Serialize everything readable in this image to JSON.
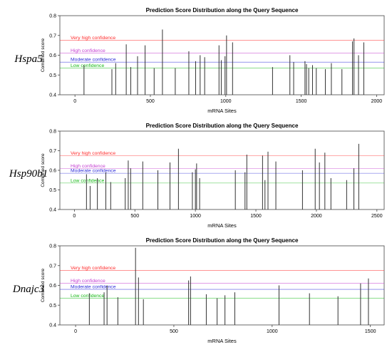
{
  "colors": {
    "very_high": "#ff2a2a",
    "high": "#c43cd0",
    "moderate": "#2a2ad8",
    "low": "#14b814",
    "bar": "#333333",
    "axis": "#444444"
  },
  "chart_data": [
    {
      "type": "bar",
      "gene": "Hspa5",
      "title": "Prediction Score Distribution along the Query Sequence",
      "xlabel": "mRNA Sites",
      "ylabel": "Combined score",
      "xlim": [
        -100,
        2050
      ],
      "ylim": [
        0.4,
        0.8
      ],
      "xticks": [
        0,
        500,
        1000,
        1500,
        2000
      ],
      "yticks": [
        0.4,
        0.5,
        0.6,
        0.7,
        0.8
      ],
      "thresholds": [
        {
          "label": "Very high confidence",
          "value": 0.675,
          "color_key": "very_high"
        },
        {
          "label": "High confidence",
          "value": 0.61,
          "color_key": "high"
        },
        {
          "label": "Moderate confidence",
          "value": 0.565,
          "color_key": "moderate"
        },
        {
          "label": "Low confidence",
          "value": 0.535,
          "color_key": "low"
        }
      ],
      "x": [
        60,
        245,
        270,
        340,
        370,
        415,
        465,
        525,
        580,
        665,
        755,
        800,
        830,
        860,
        955,
        970,
        995,
        1005,
        1045,
        1310,
        1425,
        1450,
        1525,
        1535,
        1550,
        1575,
        1600,
        1660,
        1700,
        1770,
        1840,
        1850,
        1880,
        1915
      ],
      "values": [
        0.55,
        0.53,
        0.56,
        0.655,
        0.54,
        0.595,
        0.65,
        0.535,
        0.73,
        0.535,
        0.62,
        0.57,
        0.6,
        0.59,
        0.65,
        0.575,
        0.595,
        0.7,
        0.665,
        0.54,
        0.6,
        0.565,
        0.57,
        0.555,
        0.535,
        0.55,
        0.535,
        0.53,
        0.56,
        0.53,
        0.67,
        0.685,
        0.6,
        0.665
      ]
    },
    {
      "type": "bar",
      "gene": "Hsp90b1",
      "title": "Prediction Score Distribution along the Query Sequence",
      "xlabel": "mRNA Sites",
      "ylabel": "Combined score",
      "xlim": [
        -120,
        2560
      ],
      "ylim": [
        0.4,
        0.8
      ],
      "xticks": [
        0,
        500,
        1000,
        1500,
        2000,
        2500
      ],
      "yticks": [
        0.4,
        0.5,
        0.6,
        0.7,
        0.8
      ],
      "thresholds": [
        {
          "label": "Very high confidence",
          "value": 0.675,
          "color_key": "very_high"
        },
        {
          "label": "High confidence",
          "value": 0.61,
          "color_key": "high"
        },
        {
          "label": "Moderate confidence",
          "value": 0.585,
          "color_key": "moderate"
        },
        {
          "label": "Low confidence",
          "value": 0.535,
          "color_key": "low"
        }
      ],
      "x": [
        100,
        130,
        190,
        260,
        300,
        420,
        445,
        465,
        565,
        690,
        790,
        860,
        975,
        1000,
        1010,
        1035,
        1330,
        1410,
        1425,
        1555,
        1575,
        1600,
        1665,
        1885,
        1990,
        2025,
        2070,
        2120,
        2250,
        2310,
        2350
      ],
      "values": [
        0.58,
        0.52,
        0.56,
        0.59,
        0.54,
        0.56,
        0.65,
        0.61,
        0.645,
        0.6,
        0.64,
        0.71,
        0.59,
        0.605,
        0.635,
        0.56,
        0.6,
        0.59,
        0.68,
        0.675,
        0.55,
        0.695,
        0.645,
        0.6,
        0.71,
        0.64,
        0.69,
        0.56,
        0.55,
        0.61,
        0.735
      ]
    },
    {
      "type": "bar",
      "gene": "Dnajc3",
      "title": "Prediction Score Distribution along the Query Sequence",
      "xlabel": "mRNA Sites",
      "ylabel": "Combined score",
      "xlim": [
        -80,
        1570
      ],
      "ylim": [
        0.4,
        0.8
      ],
      "xticks": [
        0,
        500,
        1000,
        1500
      ],
      "yticks": [
        0.4,
        0.5,
        0.6,
        0.7,
        0.8
      ],
      "thresholds": [
        {
          "label": "Very high confidence",
          "value": 0.675,
          "color_key": "very_high"
        },
        {
          "label": "High confidence",
          "value": 0.61,
          "color_key": "high"
        },
        {
          "label": "Moderate confidence",
          "value": 0.58,
          "color_key": "moderate"
        },
        {
          "label": "Low confidence",
          "value": 0.535,
          "color_key": "low"
        }
      ],
      "x": [
        70,
        145,
        160,
        215,
        305,
        320,
        345,
        575,
        585,
        665,
        720,
        760,
        810,
        1035,
        1190,
        1335,
        1450,
        1490
      ],
      "values": [
        0.56,
        0.565,
        0.6,
        0.54,
        0.79,
        0.64,
        0.53,
        0.625,
        0.645,
        0.555,
        0.535,
        0.55,
        0.565,
        0.6,
        0.56,
        0.545,
        0.61,
        0.635
      ]
    }
  ]
}
